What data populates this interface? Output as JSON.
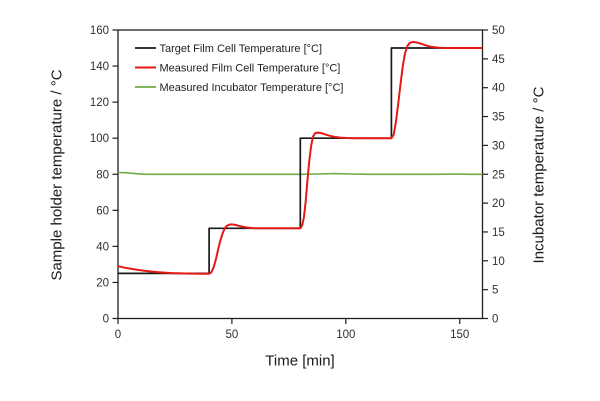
{
  "chart_data": {
    "type": "line",
    "title": "",
    "xlabel": "Time [min]",
    "ylabel_left": "Sample holder temperature / °C",
    "ylabel_right": "Incubator temperature / °C",
    "xlim": [
      0,
      160
    ],
    "xticks": [
      0,
      50,
      100,
      150
    ],
    "ylim_left": [
      0,
      160
    ],
    "yticks_left": [
      0,
      20,
      40,
      60,
      80,
      100,
      120,
      140,
      160
    ],
    "ylim_right": [
      0,
      50
    ],
    "yticks_right": [
      0,
      5,
      10,
      15,
      20,
      25,
      30,
      35,
      40,
      45,
      50
    ],
    "grid": false,
    "plot_border": true,
    "legend_position": "inside-top-left",
    "axis_color": "#1f1f1f",
    "tick_label_color": "#303030",
    "legend_text_color": "#1f1f1f",
    "background": "#ffffff",
    "series": [
      {
        "name": "Target Film Cell Temperature [°C]",
        "color": "#1a1a1a",
        "axis": "left",
        "points": [
          [
            0,
            25
          ],
          [
            40,
            25
          ],
          [
            40,
            50
          ],
          [
            80,
            50
          ],
          [
            80,
            100
          ],
          [
            120,
            100
          ],
          [
            120,
            150
          ],
          [
            160,
            150
          ]
        ]
      },
      {
        "name": "Measured Film Cell Temperature [°C]",
        "color": "#e41a14",
        "axis": "left",
        "points": [
          [
            0,
            29
          ],
          [
            3,
            28.2
          ],
          [
            6,
            27.5
          ],
          [
            9,
            26.9
          ],
          [
            12,
            26.4
          ],
          [
            15,
            26.0
          ],
          [
            18,
            25.7
          ],
          [
            21,
            25.4
          ],
          [
            24,
            25.2
          ],
          [
            28,
            25.0
          ],
          [
            32,
            24.9
          ],
          [
            36,
            24.85
          ],
          [
            40,
            24.8
          ],
          [
            41,
            25.6
          ],
          [
            42,
            28.5
          ],
          [
            43,
            33
          ],
          [
            44,
            38.5
          ],
          [
            45,
            43.5
          ],
          [
            46,
            47.5
          ],
          [
            47,
            50.3
          ],
          [
            48,
            51.6
          ],
          [
            49,
            52.1
          ],
          [
            50,
            52.2
          ],
          [
            51.5,
            51.9
          ],
          [
            53,
            51.4
          ],
          [
            55,
            50.8
          ],
          [
            57,
            50.4
          ],
          [
            60,
            50.1
          ],
          [
            64,
            50
          ],
          [
            70,
            50
          ],
          [
            75,
            50
          ],
          [
            80,
            50
          ],
          [
            80.8,
            51.5
          ],
          [
            81.6,
            56
          ],
          [
            82.4,
            65
          ],
          [
            83.2,
            77
          ],
          [
            84,
            88
          ],
          [
            84.8,
            96
          ],
          [
            85.6,
            100.8
          ],
          [
            86.4,
            102.6
          ],
          [
            87.5,
            103.1
          ],
          [
            89,
            102.9
          ],
          [
            91,
            102.1
          ],
          [
            93,
            101.3
          ],
          [
            95,
            100.7
          ],
          [
            97.5,
            100.3
          ],
          [
            100,
            100.1
          ],
          [
            104,
            100
          ],
          [
            110,
            100
          ],
          [
            115,
            100
          ],
          [
            120,
            100
          ],
          [
            121,
            102
          ],
          [
            122,
            109
          ],
          [
            123,
            119
          ],
          [
            124,
            130
          ],
          [
            125,
            140
          ],
          [
            126,
            147
          ],
          [
            127,
            151
          ],
          [
            128,
            152.8
          ],
          [
            129.5,
            153.4
          ],
          [
            131,
            153.1
          ],
          [
            133,
            152.4
          ],
          [
            135,
            151.5
          ],
          [
            137,
            150.8
          ],
          [
            139,
            150.4
          ],
          [
            141,
            150.15
          ],
          [
            144,
            150
          ],
          [
            150,
            150
          ],
          [
            155,
            150
          ],
          [
            160,
            150
          ]
        ]
      },
      {
        "name": "Measured Incubator Temperature [°C]",
        "color": "#6fac46",
        "axis": "right",
        "points": [
          [
            0,
            25.3
          ],
          [
            4,
            25.25
          ],
          [
            8,
            25.1
          ],
          [
            12,
            25.0
          ],
          [
            20,
            25.0
          ],
          [
            30,
            25.0
          ],
          [
            40,
            25.0
          ],
          [
            50,
            25.0
          ],
          [
            60,
            25.0
          ],
          [
            70,
            25.0
          ],
          [
            80,
            25.0
          ],
          [
            88,
            25.05
          ],
          [
            95,
            25.12
          ],
          [
            102,
            25.05
          ],
          [
            110,
            25.0
          ],
          [
            120,
            25.0
          ],
          [
            130,
            25.0
          ],
          [
            140,
            25.0
          ],
          [
            148,
            25.05
          ],
          [
            155,
            25.0
          ],
          [
            160,
            25.0
          ]
        ]
      }
    ]
  }
}
